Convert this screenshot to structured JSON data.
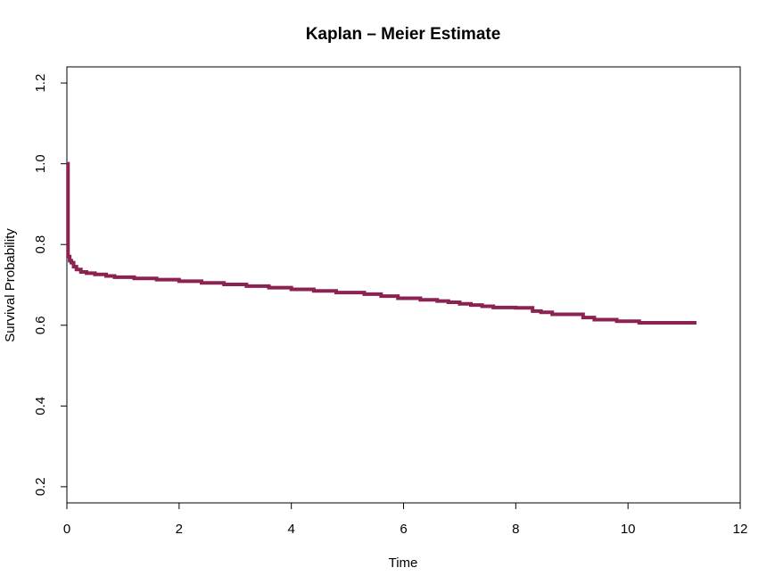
{
  "chart_data": {
    "type": "line",
    "title": "Kaplan – Meier Estimate",
    "xlabel": "Time",
    "ylabel": "Survival Probability",
    "xlim": [
      0,
      12
    ],
    "ylim": [
      0.16,
      1.24
    ],
    "x_ticks": [
      0,
      2,
      4,
      6,
      8,
      10,
      12
    ],
    "y_ticks": [
      0.2,
      0.4,
      0.6,
      0.8,
      1.0,
      1.2
    ],
    "x_tick_labels": [
      "0",
      "2",
      "4",
      "6",
      "8",
      "10",
      "12"
    ],
    "y_tick_labels": [
      "0.2",
      "0.4",
      "0.6",
      "0.8",
      "1.0",
      "1.2"
    ],
    "grid": false,
    "legend": false,
    "step": true,
    "series": [
      {
        "color": "#8b2252",
        "x": [
          0,
          0.02,
          0.05,
          0.08,
          0.12,
          0.17,
          0.25,
          0.35,
          0.5,
          0.7,
          0.85,
          1.2,
          1.6,
          2.0,
          2.4,
          2.8,
          3.2,
          3.6,
          4.0,
          4.4,
          4.8,
          5.3,
          5.6,
          5.9,
          6.3,
          6.6,
          6.8,
          7.0,
          7.2,
          7.4,
          7.6,
          8.0,
          8.3,
          8.45,
          8.65,
          9.2,
          9.4,
          9.8,
          10.2,
          10.6,
          11.22
        ],
        "y": [
          1.0,
          0.77,
          0.76,
          0.755,
          0.745,
          0.738,
          0.732,
          0.729,
          0.726,
          0.722,
          0.719,
          0.716,
          0.713,
          0.709,
          0.705,
          0.701,
          0.697,
          0.693,
          0.689,
          0.685,
          0.681,
          0.677,
          0.672,
          0.667,
          0.663,
          0.66,
          0.657,
          0.653,
          0.65,
          0.647,
          0.644,
          0.643,
          0.635,
          0.632,
          0.627,
          0.619,
          0.614,
          0.61,
          0.606,
          0.606,
          0.606
        ]
      }
    ]
  }
}
